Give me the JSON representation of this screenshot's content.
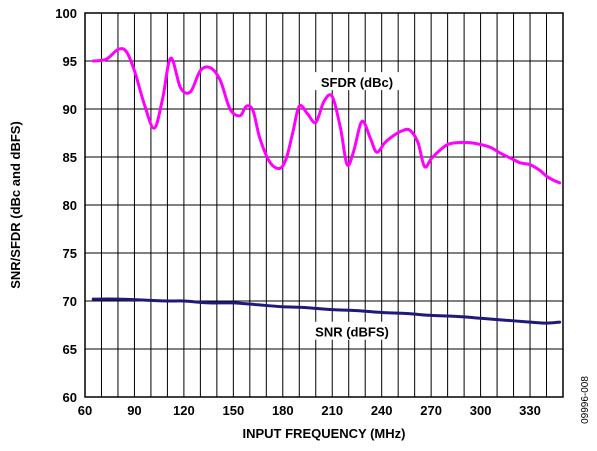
{
  "chart_data": {
    "type": "line",
    "xlabel": "INPUT FREQUENCY (MHz)",
    "ylabel": "SNR/SFDR (dBc and dBFS)",
    "xlim": [
      60,
      350
    ],
    "ylim": [
      60,
      100
    ],
    "x_ticks": [
      60,
      90,
      120,
      150,
      180,
      210,
      240,
      270,
      300,
      330
    ],
    "y_ticks": [
      60,
      65,
      70,
      75,
      80,
      85,
      90,
      95,
      100
    ],
    "grid": true,
    "series": [
      {
        "name": "SFDR (dBc)",
        "color": "#ff00ff",
        "x": [
          65,
          73,
          80,
          85,
          90,
          96,
          102,
          107,
          112,
          118,
          124,
          130,
          136,
          142,
          148,
          154,
          158,
          162,
          166,
          172,
          178,
          182,
          186,
          190,
          195,
          200,
          205,
          210,
          215,
          219,
          223,
          228,
          233,
          237,
          242,
          247,
          252,
          257,
          262,
          266,
          270,
          274,
          280,
          286,
          293,
          300,
          306,
          312,
          318,
          324,
          330,
          336,
          340,
          344,
          348
        ],
        "y": [
          95,
          95.2,
          96.2,
          96,
          94,
          90.5,
          88,
          91,
          95.3,
          92.2,
          91.8,
          94,
          94.3,
          93,
          90,
          89.3,
          90.3,
          89.8,
          87,
          84.5,
          83.8,
          84.8,
          87.5,
          90.3,
          89.5,
          88.6,
          90.8,
          91.3,
          88,
          84.2,
          85.6,
          88.7,
          87,
          85.5,
          86.5,
          87.2,
          87.7,
          87.8,
          86.5,
          84,
          84.8,
          85.5,
          86.3,
          86.5,
          86.5,
          86.3,
          86,
          85.4,
          84.9,
          84.4,
          84.2,
          83.6,
          83,
          82.6,
          82.3
        ]
      },
      {
        "name": "SNR (dBFS)",
        "color": "#1f1a7a",
        "x": [
          65,
          80,
          95,
          110,
          120,
          135,
          150,
          165,
          180,
          195,
          210,
          225,
          240,
          255,
          270,
          285,
          300,
          315,
          330,
          340,
          348
        ],
        "y": [
          70.2,
          70.2,
          70.1,
          70.0,
          70.0,
          69.8,
          69.8,
          69.6,
          69.4,
          69.3,
          69.1,
          69.0,
          68.8,
          68.7,
          68.5,
          68.4,
          68.2,
          68.0,
          67.8,
          67.7,
          67.8
        ]
      }
    ],
    "annotations": [
      {
        "text": "SFDR (dBc)",
        "x": 225,
        "y": 92.8
      },
      {
        "text": "SNR (dBFS)",
        "x": 222,
        "y": 66.8
      }
    ],
    "figure_code": "09996-008"
  }
}
